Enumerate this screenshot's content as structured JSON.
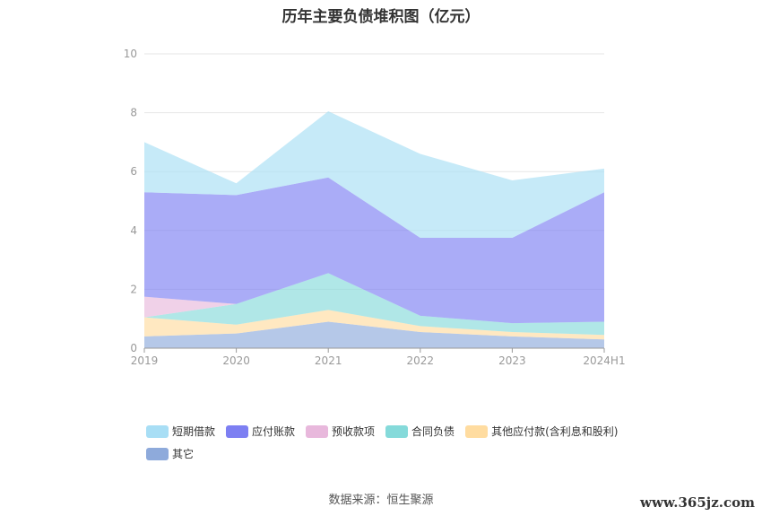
{
  "chart_data": {
    "type": "area",
    "title": "历年主要负债堆积图（亿元）",
    "x": [
      "2019",
      "2020",
      "2021",
      "2022",
      "2023",
      "2024H1"
    ],
    "ylim": [
      0,
      10
    ],
    "yticks": [
      "0",
      "2",
      "4",
      "6",
      "8",
      "10"
    ],
    "stacked": true,
    "grid": true,
    "legend_position": "bottom",
    "series": [
      {
        "name": "其它",
        "color": "#8eaadb",
        "values": [
          0.4,
          0.5,
          0.9,
          0.55,
          0.4,
          0.3
        ]
      },
      {
        "name": "其他应付款(含利息和股利)",
        "color": "#ffdca0",
        "values": [
          0.65,
          0.3,
          0.4,
          0.2,
          0.15,
          0.15
        ]
      },
      {
        "name": "合同负债",
        "color": "#85dada",
        "values": [
          0.0,
          0.7,
          1.25,
          0.35,
          0.3,
          0.45
        ]
      },
      {
        "name": "预收款项",
        "color": "#e8b8dc",
        "values": [
          0.7,
          0.0,
          0.0,
          0.0,
          0.0,
          0.0
        ]
      },
      {
        "name": "应付账款",
        "color": "#7d7ff2",
        "values": [
          3.55,
          3.7,
          3.25,
          2.65,
          2.9,
          4.4
        ]
      },
      {
        "name": "短期借款",
        "color": "#a8def5",
        "values": [
          1.7,
          0.4,
          2.25,
          2.85,
          1.95,
          0.8
        ]
      }
    ]
  },
  "source_label": "数据来源：恒生聚源",
  "watermark": "www.365jz.com"
}
